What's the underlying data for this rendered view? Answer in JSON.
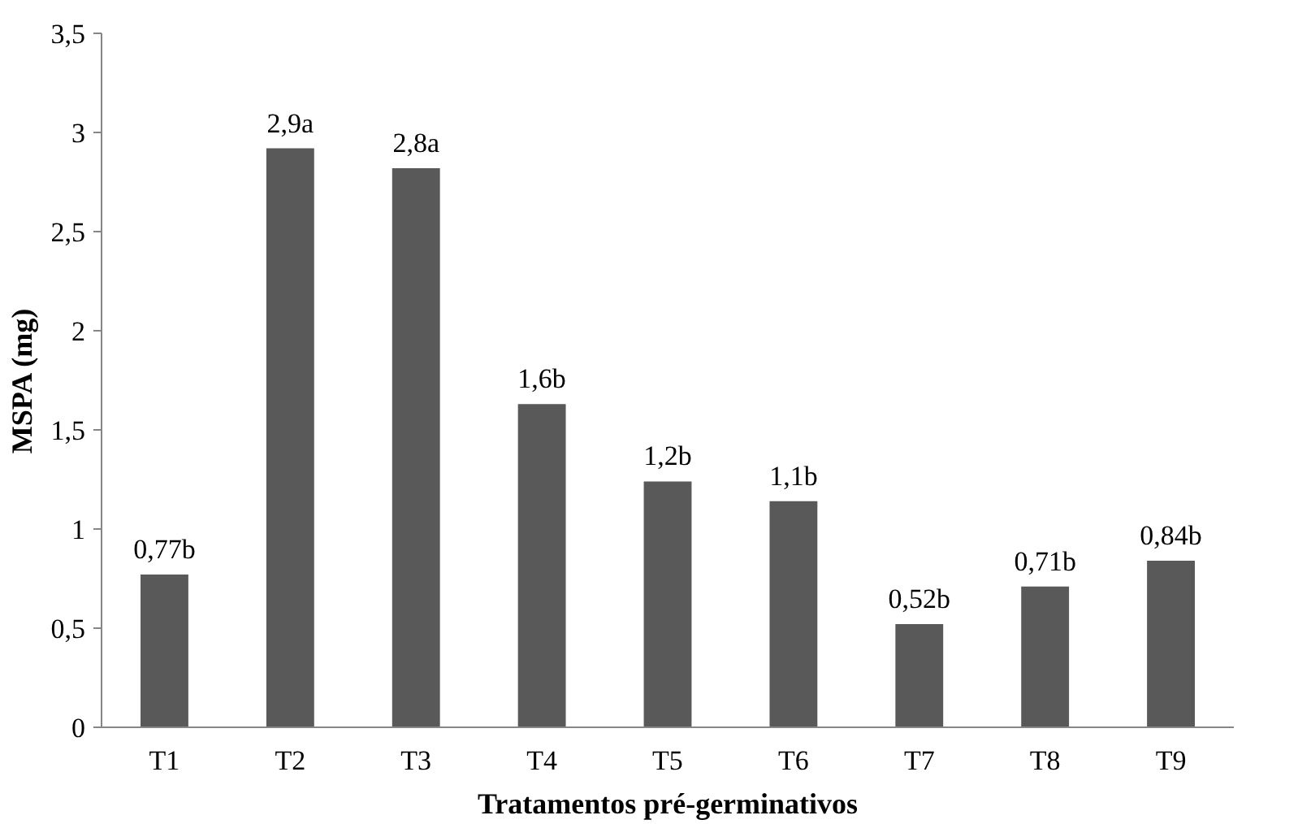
{
  "chart_data": {
    "type": "bar",
    "categories": [
      "T1",
      "T2",
      "T3",
      "T4",
      "T5",
      "T6",
      "T7",
      "T8",
      "T9"
    ],
    "values": [
      0.77,
      2.92,
      2.82,
      1.63,
      1.24,
      1.14,
      0.52,
      0.71,
      0.84
    ],
    "value_labels": [
      "0,77b",
      "2,9a",
      "2,8a",
      "1,6b",
      "1,2b",
      "1,1b",
      "0,52b",
      "0,71b",
      "0,84b"
    ],
    "color": "#595959",
    "xlabel": "Tratamentos pré-germinativos",
    "ylabel": "MSPA (mg)",
    "ylim": [
      0,
      3.5
    ],
    "yticks": [
      0,
      {
        "value": 0.5,
        "label": "0,5"
      },
      1,
      {
        "value": 1.5,
        "label": "1,5"
      },
      2,
      {
        "value": 2.5,
        "label": "2,5"
      },
      3,
      {
        "value": 3.5,
        "label": "3,5"
      }
    ],
    "grid": false
  }
}
